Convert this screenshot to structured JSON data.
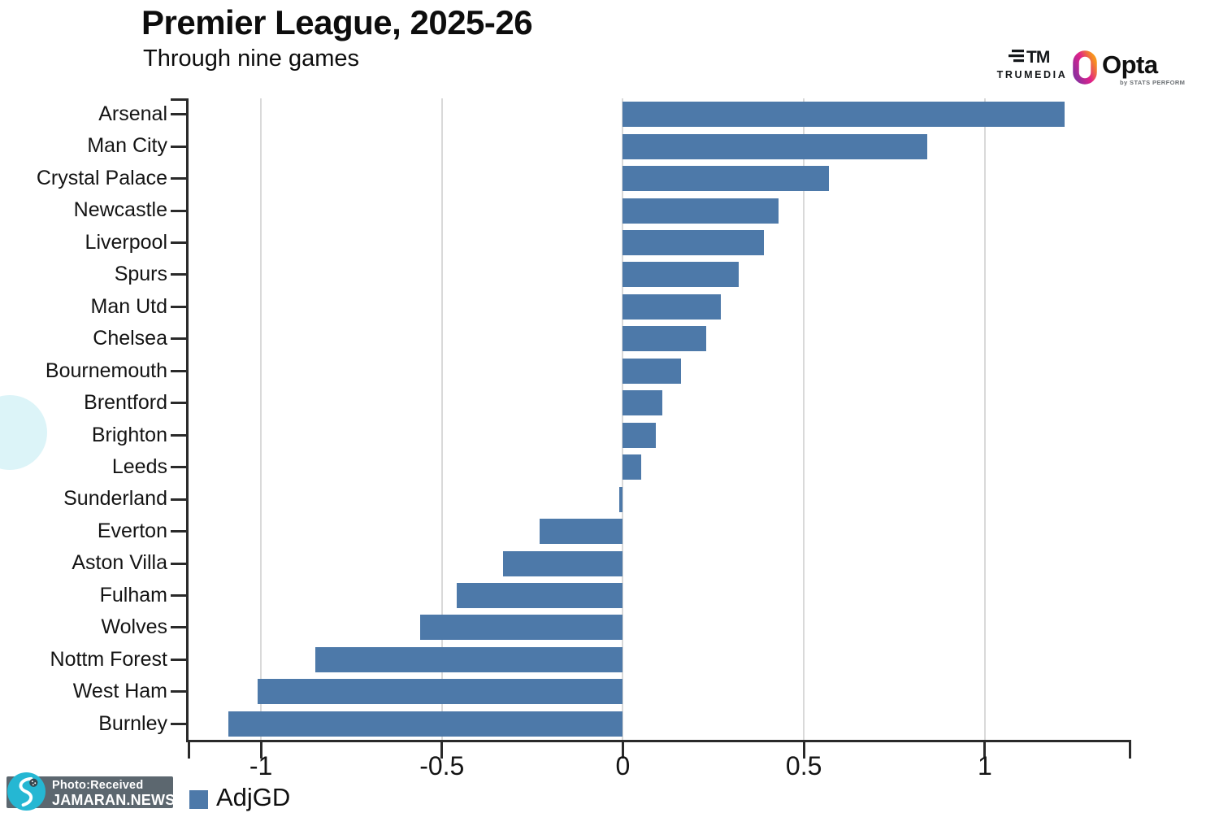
{
  "header": {
    "title": "Premier League, 2025-26",
    "subtitle": "Through nine games"
  },
  "logos": {
    "trumedia": {
      "label": "TRUMEDIA"
    },
    "opta": {
      "label": "Opta",
      "sub": "by STATS PERFORM"
    }
  },
  "legend": {
    "label": "AdjGD",
    "swatch_color": "#4d79a9"
  },
  "watermark": {
    "line1": "Photo:Received",
    "line2": "JAMARAN.NEWS",
    "banner_color": "#5c676f",
    "badge_color": "#25b7d3"
  },
  "chart_data": {
    "type": "bar",
    "orientation": "horizontal",
    "title": "Premier League, 2025-26",
    "subtitle": "Through nine games",
    "series_label": "AdjGD",
    "categories": [
      "Arsenal",
      "Man City",
      "Crystal Palace",
      "Newcastle",
      "Liverpool",
      "Spurs",
      "Man Utd",
      "Chelsea",
      "Bournemouth",
      "Brentford",
      "Brighton",
      "Leeds",
      "Sunderland",
      "Everton",
      "Aston Villa",
      "Fulham",
      "Wolves",
      "Nottm Forest",
      "West Ham",
      "Burnley"
    ],
    "values": [
      1.22,
      0.84,
      0.57,
      0.43,
      0.39,
      0.32,
      0.27,
      0.23,
      0.16,
      0.11,
      0.09,
      0.05,
      -0.01,
      -0.23,
      -0.33,
      -0.46,
      -0.56,
      -0.85,
      -1.01,
      -1.09
    ],
    "xlim": [
      -1.2,
      1.4
    ],
    "xtick_values": [
      -1,
      -0.5,
      0,
      0.5,
      1
    ],
    "xtick_labels": [
      "-1",
      "-0.5",
      "0",
      "0.5",
      "1"
    ],
    "bar_color": "#4d79a9",
    "grid": true,
    "axis_color": "#2a2a2a",
    "grid_color": "#d9d9d9",
    "legend_position": "bottom-left"
  }
}
